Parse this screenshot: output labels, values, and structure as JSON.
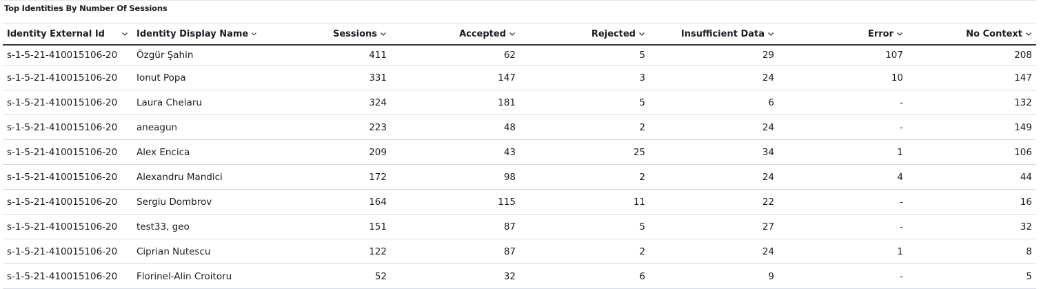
{
  "title": "Top Identities By Number Of Sessions",
  "table": {
    "columns": [
      "Identity External Id",
      "Identity Display Name",
      "Sessions",
      "Accepted",
      "Rejected",
      "Insufficient Data",
      "Error",
      "No Context"
    ],
    "rows": [
      [
        "s-1-5-21-410015106-20",
        "Özgür Şahin",
        411,
        62,
        5,
        29,
        107,
        208
      ],
      [
        "s-1-5-21-410015106-20",
        "Ionut Popa",
        331,
        147,
        3,
        24,
        10,
        147
      ],
      [
        "s-1-5-21-410015106-20",
        "Laura Chelaru",
        324,
        181,
        5,
        6,
        "-",
        132
      ],
      [
        "s-1-5-21-410015106-20",
        "aneagun",
        223,
        48,
        2,
        24,
        "-",
        149
      ],
      [
        "s-1-5-21-410015106-20",
        "Alex Encica",
        209,
        43,
        25,
        34,
        1,
        106
      ],
      [
        "s-1-5-21-410015106-20",
        "Alexandru Mandici",
        172,
        98,
        2,
        24,
        4,
        44
      ],
      [
        "s-1-5-21-410015106-20",
        "Sergiu Dombrov",
        164,
        115,
        11,
        22,
        "-",
        16
      ],
      [
        "s-1-5-21-410015106-20",
        "test33, geo",
        151,
        87,
        5,
        27,
        "-",
        32
      ],
      [
        "s-1-5-21-410015106-20",
        "Ciprian Nutescu",
        122,
        87,
        2,
        24,
        1,
        8
      ],
      [
        "s-1-5-21-410015106-20",
        "Florinel-Alin Croitoru",
        52,
        32,
        6,
        9,
        "-",
        5
      ]
    ]
  }
}
